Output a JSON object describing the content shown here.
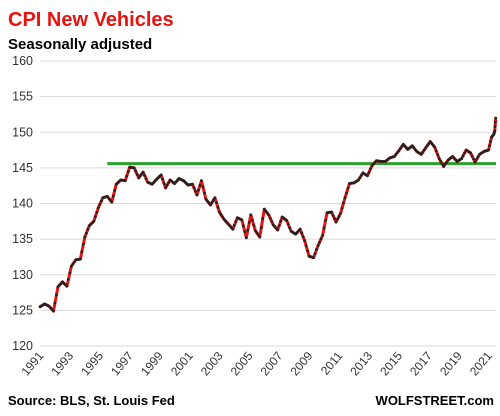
{
  "chart_data": {
    "type": "line",
    "title": "CPI New Vehicles",
    "subtitle": "Seasonally adjusted",
    "xlabel": "",
    "ylabel": "",
    "xlim": [
      1991,
      2021.5
    ],
    "ylim": [
      120,
      160
    ],
    "yticks": [
      120,
      125,
      130,
      135,
      140,
      145,
      150,
      155,
      160
    ],
    "xticks": [
      "1991",
      "1993",
      "1995",
      "1997",
      "1999",
      "2001",
      "2003",
      "2005",
      "2007",
      "2009",
      "2011",
      "2013",
      "2015",
      "2017",
      "2019",
      "2021"
    ],
    "grid": "horizontal",
    "reference_line": {
      "value": 145.6,
      "from": 1995.5,
      "to": 2021.5,
      "color": "#2ca02c"
    },
    "series": [
      {
        "line_color": "#e8130f",
        "marker_color": "#222222",
        "x": [
          1991.0,
          1991.3,
          1991.6,
          1991.9,
          1992.2,
          1992.5,
          1992.8,
          1993.1,
          1993.4,
          1993.7,
          1994.0,
          1994.3,
          1994.6,
          1994.9,
          1995.2,
          1995.5,
          1995.8,
          1996.1,
          1996.4,
          1996.7,
          1997.0,
          1997.3,
          1997.6,
          1997.9,
          1998.2,
          1998.5,
          1998.8,
          1999.1,
          1999.4,
          1999.7,
          2000.0,
          2000.3,
          2000.6,
          2000.9,
          2001.2,
          2001.5,
          2001.8,
          2002.1,
          2002.4,
          2002.7,
          2003.0,
          2003.3,
          2003.6,
          2003.9,
          2004.2,
          2004.5,
          2004.8,
          2005.1,
          2005.4,
          2005.7,
          2006.0,
          2006.3,
          2006.6,
          2006.9,
          2007.2,
          2007.5,
          2007.8,
          2008.1,
          2008.4,
          2008.7,
          2009.0,
          2009.3,
          2009.6,
          2009.9,
          2010.2,
          2010.5,
          2010.8,
          2011.1,
          2011.4,
          2011.7,
          2012.0,
          2012.3,
          2012.6,
          2012.9,
          2013.2,
          2013.5,
          2013.8,
          2014.1,
          2014.4,
          2014.7,
          2015.0,
          2015.3,
          2015.6,
          2015.9,
          2016.2,
          2016.5,
          2016.8,
          2017.1,
          2017.4,
          2017.7,
          2018.0,
          2018.3,
          2018.6,
          2018.9,
          2019.2,
          2019.5,
          2019.8,
          2020.1,
          2020.4,
          2020.7,
          2021.0,
          2021.2,
          2021.35
        ],
        "y": [
          125.5,
          125.9,
          125.6,
          124.9,
          128.3,
          129.0,
          128.4,
          131.2,
          132.1,
          132.2,
          135.3,
          136.9,
          137.5,
          139.4,
          140.8,
          141.0,
          140.2,
          142.7,
          143.3,
          143.2,
          145.1,
          145.0,
          143.6,
          144.4,
          143.0,
          142.7,
          143.4,
          144.0,
          142.2,
          143.3,
          142.8,
          143.5,
          143.2,
          142.6,
          142.7,
          141.2,
          143.2,
          140.6,
          139.8,
          140.8,
          138.8,
          137.8,
          137.1,
          136.4,
          138.0,
          137.7,
          135.2,
          138.4,
          136.2,
          135.3,
          139.2,
          138.4,
          137.0,
          136.3,
          138.1,
          137.6,
          136.1,
          135.7,
          136.4,
          134.8,
          132.6,
          132.4,
          134.1,
          135.5,
          138.7,
          138.8,
          137.4,
          138.6,
          140.8,
          142.8,
          142.9,
          143.3,
          144.3,
          143.9,
          145.3,
          146.0,
          145.9,
          145.9,
          146.4,
          146.6,
          147.4,
          148.3,
          147.6,
          148.1,
          147.3,
          146.9,
          147.8,
          148.7,
          147.9,
          146.3,
          145.2,
          146.1,
          146.6,
          145.9,
          146.3,
          147.5,
          147.1,
          145.8,
          146.9,
          147.3,
          147.5,
          149.3,
          149.7
        ]
      }
    ],
    "annotation_points": [
      {
        "x": 2021.42,
        "y": 150.2
      },
      {
        "x": 2021.48,
        "y": 152.0
      }
    ]
  },
  "footer": {
    "source": "Source: BLS, St. Louis Fed",
    "brand": "WOLFSTREET.com"
  }
}
